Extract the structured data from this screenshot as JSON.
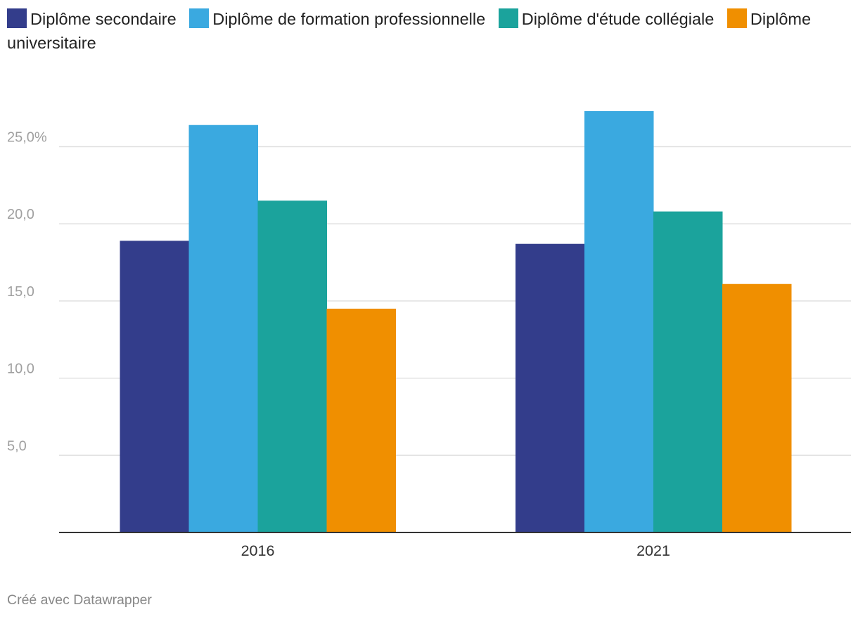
{
  "chart_data": {
    "type": "bar",
    "categories": [
      "2016",
      "2021"
    ],
    "series": [
      {
        "name": "Diplôme secondaire",
        "color": "#333d8b",
        "values": [
          18.9,
          18.7
        ]
      },
      {
        "name": "Diplôme de formation professionnelle",
        "color": "#3aa9e0",
        "values": [
          26.4,
          27.3
        ]
      },
      {
        "name": "Diplôme d'étude collégiale",
        "color": "#1ba39c",
        "values": [
          21.5,
          20.8
        ]
      },
      {
        "name": "Diplôme universitaire",
        "color": "#f08f00",
        "values": [
          14.5,
          16.1
        ]
      }
    ],
    "ylim": [
      0,
      27.3
    ],
    "yticks": [
      5,
      10,
      15,
      20,
      25
    ],
    "ytick_labels": [
      "5,0",
      "10,0",
      "15,0",
      "20,0",
      "25,0%"
    ],
    "grid": true,
    "legend": "top"
  },
  "footer": {
    "credit": "Créé avec Datawrapper"
  }
}
